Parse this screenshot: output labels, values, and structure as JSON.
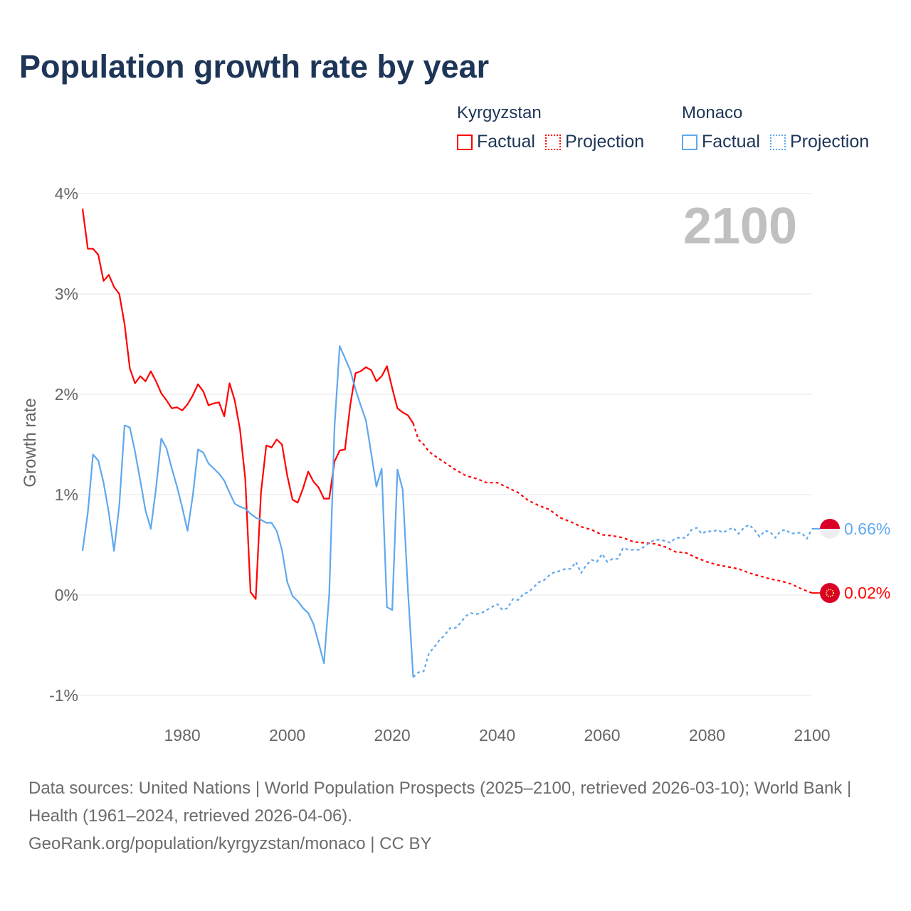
{
  "title": "Population growth rate by year",
  "legend": {
    "groups": [
      {
        "name": "Kyrgyzstan",
        "color": "#ff0000",
        "factual": "Factual",
        "projection": "Projection"
      },
      {
        "name": "Monaco",
        "color": "#5fa8ee",
        "factual": "Factual",
        "projection": "Projection"
      }
    ]
  },
  "year_label": "2100",
  "footer": {
    "sources": "Data sources: United Nations | World Population Prospects (2025–2100, retrieved 2026-03-10); World Bank | Health (1961–2024, retrieved 2026-04-06).",
    "link": "GeoRank.org/population/kyrgyzstan/monaco | CC BY"
  },
  "chart_data": {
    "type": "line",
    "title": "Population growth rate by year",
    "xlabel": "",
    "ylabel": "Growth rate",
    "xlim": [
      1961,
      2100
    ],
    "ylim": [
      -1,
      4
    ],
    "x_ticks": [
      "1980",
      "2000",
      "2020",
      "2040",
      "2060",
      "2080",
      "2100"
    ],
    "x_tick_values": [
      1980,
      2000,
      2020,
      2040,
      2060,
      2080,
      2100
    ],
    "y_ticks": [
      "4%",
      "3%",
      "2%",
      "1%",
      "0%",
      "-1%"
    ],
    "y_tick_values": [
      4,
      3,
      2,
      1,
      0,
      -1
    ],
    "grid": true,
    "legend_position": "top-right",
    "series": [
      {
        "name": "Kyrgyzstan Factual",
        "color": "#ff0000",
        "dashed": false,
        "x_start": 1961,
        "x_step": 1,
        "values": [
          3.85,
          3.45,
          3.45,
          3.39,
          3.13,
          3.19,
          3.07,
          3.0,
          2.7,
          2.26,
          2.11,
          2.18,
          2.13,
          2.23,
          2.13,
          2.01,
          1.94,
          1.86,
          1.87,
          1.84,
          1.9,
          1.99,
          2.1,
          2.03,
          1.89,
          1.91,
          1.92,
          1.78,
          2.11,
          1.94,
          1.65,
          1.16,
          0.03,
          -0.04,
          1.02,
          1.49,
          1.47,
          1.55,
          1.5,
          1.19,
          0.95,
          0.92,
          1.06,
          1.23,
          1.13,
          1.07,
          0.96,
          0.96,
          1.33,
          1.44,
          1.45,
          1.89,
          2.21,
          2.23,
          2.27,
          2.24,
          2.13,
          2.18,
          2.28,
          2.06,
          1.86,
          1.82,
          1.79,
          1.71
        ]
      },
      {
        "name": "Kyrgyzstan Projection",
        "color": "#ff0000",
        "dashed": true,
        "x": [
          2024,
          2025,
          2026,
          2027,
          2028,
          2030,
          2032,
          2034,
          2036,
          2038,
          2040,
          2042,
          2044,
          2046,
          2048,
          2050,
          2052,
          2054,
          2056,
          2058,
          2060,
          2062,
          2064,
          2066,
          2068,
          2070,
          2072,
          2074,
          2076,
          2078,
          2080,
          2082,
          2084,
          2086,
          2088,
          2090,
          2092,
          2094,
          2096,
          2098,
          2100
        ],
        "values": [
          1.71,
          1.55,
          1.5,
          1.43,
          1.39,
          1.32,
          1.25,
          1.19,
          1.16,
          1.12,
          1.12,
          1.07,
          1.02,
          0.94,
          0.89,
          0.85,
          0.77,
          0.73,
          0.68,
          0.65,
          0.6,
          0.59,
          0.57,
          0.53,
          0.52,
          0.51,
          0.48,
          0.43,
          0.42,
          0.37,
          0.33,
          0.3,
          0.28,
          0.26,
          0.22,
          0.19,
          0.16,
          0.14,
          0.11,
          0.06,
          0.02
        ]
      },
      {
        "name": "Monaco Factual",
        "color": "#5fa8ee",
        "dashed": false,
        "x_start": 1961,
        "x_step": 1,
        "values": [
          0.44,
          0.82,
          1.4,
          1.34,
          1.12,
          0.82,
          0.44,
          0.89,
          1.69,
          1.67,
          1.43,
          1.14,
          0.84,
          0.66,
          1.06,
          1.56,
          1.46,
          1.26,
          1.08,
          0.87,
          0.64,
          0.99,
          1.45,
          1.42,
          1.31,
          1.26,
          1.21,
          1.14,
          1.02,
          0.91,
          0.88,
          0.86,
          0.81,
          0.77,
          0.75,
          0.72,
          0.72,
          0.64,
          0.45,
          0.13,
          -0.01,
          -0.06,
          -0.13,
          -0.18,
          -0.29,
          -0.48,
          -0.68,
          0.01,
          1.67,
          2.48,
          2.36,
          2.24,
          2.05,
          1.89,
          1.74,
          1.41,
          1.08,
          1.26,
          -0.12,
          -0.15,
          1.25,
          1.05,
          0.04,
          -0.82
        ]
      },
      {
        "name": "Monaco Projection",
        "color": "#5fa8ee",
        "dashed": true,
        "x_start": 2024,
        "x_step": 1,
        "values": [
          -0.82,
          -0.77,
          -0.76,
          -0.58,
          -0.52,
          -0.45,
          -0.4,
          -0.33,
          -0.33,
          -0.28,
          -0.21,
          -0.18,
          -0.19,
          -0.18,
          -0.15,
          -0.12,
          -0.09,
          -0.15,
          -0.13,
          -0.04,
          -0.05,
          0.01,
          0.03,
          0.08,
          0.13,
          0.15,
          0.2,
          0.23,
          0.24,
          0.26,
          0.26,
          0.33,
          0.22,
          0.3,
          0.35,
          0.33,
          0.41,
          0.33,
          0.36,
          0.36,
          0.47,
          0.45,
          0.45,
          0.45,
          0.48,
          0.52,
          0.55,
          0.55,
          0.54,
          0.52,
          0.57,
          0.57,
          0.57,
          0.65,
          0.67,
          0.61,
          0.64,
          0.63,
          0.65,
          0.62,
          0.65,
          0.67,
          0.61,
          0.67,
          0.7,
          0.65,
          0.58,
          0.64,
          0.63,
          0.57,
          0.64,
          0.65,
          0.61,
          0.62,
          0.62,
          0.56,
          0.66
        ]
      }
    ],
    "end_labels": [
      {
        "series": "Monaco",
        "text": "0.66%",
        "color": "#5fa8ee",
        "value": 0.66
      },
      {
        "series": "Kyrgyzstan",
        "text": "0.02%",
        "color": "#ff0000",
        "value": 0.02
      }
    ]
  }
}
